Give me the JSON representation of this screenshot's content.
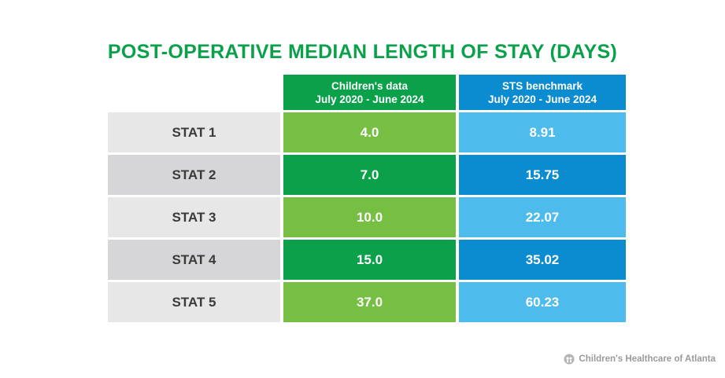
{
  "chart_data": {
    "type": "table",
    "title": "POST-OPERATIVE MEDIAN LENGTH OF STAY (DAYS)",
    "columns": [
      {
        "line1": "Children's data",
        "line2": "July 2020 - June 2024"
      },
      {
        "line1": "STS benchmark",
        "line2": "July 2020 - June 2024"
      }
    ],
    "rows": [
      {
        "label": "STAT 1",
        "childrens": "4.0",
        "sts": "8.91"
      },
      {
        "label": "STAT 2",
        "childrens": "7.0",
        "sts": "15.75"
      },
      {
        "label": "STAT 3",
        "childrens": "10.0",
        "sts": "22.07"
      },
      {
        "label": "STAT 4",
        "childrens": "15.0",
        "sts": "35.02"
      },
      {
        "label": "STAT 5",
        "childrens": "37.0",
        "sts": "60.23"
      }
    ]
  },
  "colors": {
    "title_green": "#0ba14b",
    "header_green": "#0ba14b",
    "header_blue": "#0b8bd0",
    "green_light": "#76bf43",
    "green_dark": "#0ba14b",
    "blue_light": "#4dbbec",
    "blue_dark": "#0b8bd0",
    "gray_light": "#e8e7e8",
    "gray_dark": "#d6d5d7"
  },
  "footer": {
    "brand": "Children's Healthcare of Atlanta",
    "icon": "childrens-logo-icon"
  }
}
